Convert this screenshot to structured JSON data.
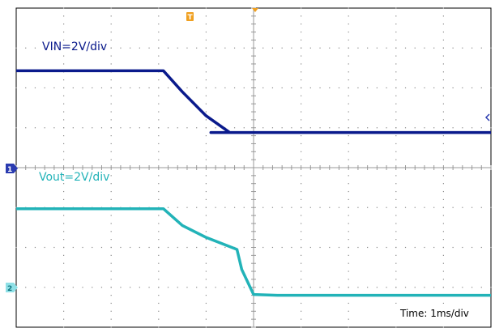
{
  "chart_data": {
    "type": "line",
    "grid": true,
    "x_unit": "ms",
    "x_range": [
      -5,
      5
    ],
    "y_range_divs": [
      -4,
      4
    ],
    "series": [
      {
        "name": "VIN=2V/div",
        "channel": "1",
        "color": "#0a1a8c",
        "x": [
          -5.0,
          -1.9,
          -1.5,
          -1.0,
          -0.5,
          -0.9,
          5.0
        ],
        "y": [
          2.43,
          2.43,
          1.9,
          1.3,
          0.88,
          0.88,
          0.88
        ]
      },
      {
        "name": "Vout=2V/div",
        "channel": "2",
        "color": "#22b3b8",
        "x": [
          -5.0,
          -1.9,
          -1.5,
          -1.0,
          -0.35,
          -0.25,
          0.0,
          0.5,
          5.0
        ],
        "y": [
          -1.03,
          -1.03,
          -1.45,
          -1.75,
          -2.05,
          -2.55,
          -3.18,
          -3.2,
          -3.2
        ]
      }
    ],
    "annotations": {
      "time_div": "Time: 1ms/div"
    },
    "markers": {
      "trigger": "T",
      "channel1": "1",
      "channel2": "2"
    }
  }
}
